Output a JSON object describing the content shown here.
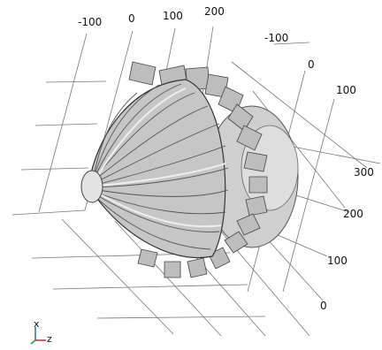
{
  "graphics": {
    "ticks_top": [
      "-100",
      "0",
      "100",
      "200"
    ],
    "ticks_right_upper": [
      "-100",
      "0",
      "100"
    ],
    "ticks_right_lower": [
      "300",
      "200",
      "100",
      "0"
    ]
  },
  "triad": {
    "x_label": "x",
    "z_label": "z",
    "colors": {
      "x": "#1f77b4",
      "y": "#2ca02c",
      "z": "#d62728"
    }
  },
  "model": {
    "fill_color": "#bdbdbd",
    "edge_color": "#4a4a4a"
  }
}
